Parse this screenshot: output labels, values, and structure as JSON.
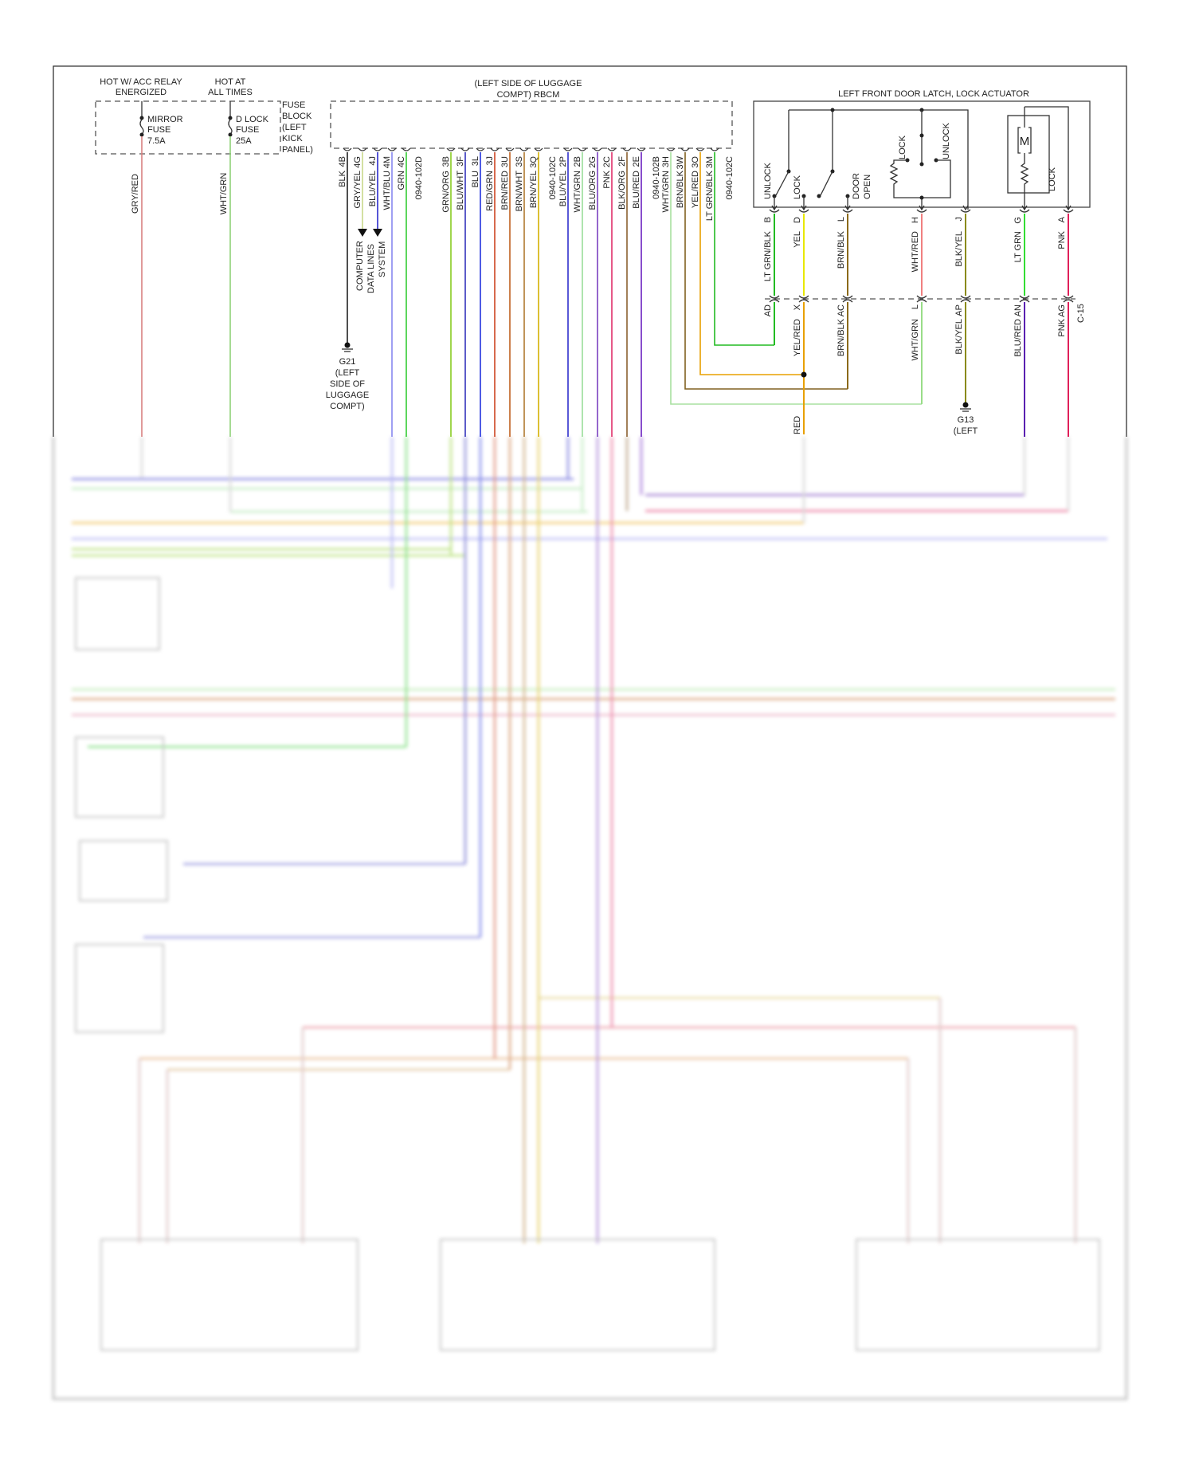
{
  "fuse_block": {
    "hot_acc": [
      "HOT W/ ACC RELAY",
      "ENERGIZED"
    ],
    "hot_all": [
      "HOT AT",
      "ALL TIMES"
    ],
    "mirror_fuse": [
      "MIRROR",
      "FUSE",
      "7.5A"
    ],
    "dlock_fuse": [
      "D LOCK",
      "FUSE",
      "25A"
    ],
    "label": [
      "FUSE",
      "BLOCK",
      "(LEFT",
      "KICK",
      "PANEL)"
    ],
    "wires": [
      {
        "wire": "GRY/RED",
        "color": "#d88080"
      },
      {
        "wire": "WHT/GRN",
        "color": "#8fd27a"
      }
    ]
  },
  "rbcm": {
    "title": [
      "(LEFT SIDE OF LUGGAGE",
      "COMPT) RBCM"
    ],
    "pins": [
      {
        "wire": "BLK",
        "pin": "4B",
        "color": "#222222"
      },
      {
        "wire": "GRY/YEL",
        "pin": "4G",
        "color": "#c8d88a"
      },
      {
        "wire": "BLU/YEL",
        "pin": "4J",
        "color": "#2a2acc"
      },
      {
        "wire": "WHT/BLU",
        "pin": "4M",
        "color": "#8888ee"
      },
      {
        "wire": "GRN",
        "pin": "4C",
        "color": "#33cc33"
      },
      {
        "connector": "0940-102D"
      },
      {
        "wire": "GRN/ORG",
        "pin": "3B",
        "color": "#88cc22"
      },
      {
        "wire": "BLU/WHT",
        "pin": "3F",
        "color": "#3333bb"
      },
      {
        "wire": "BLU",
        "pin": "3L",
        "color": "#2233dd"
      },
      {
        "wire": "RED/GRN",
        "pin": "3J",
        "color": "#cc4422"
      },
      {
        "wire": "BRN/RED",
        "pin": "3U",
        "color": "#c06020"
      },
      {
        "wire": "BRN/WHT",
        "pin": "3S",
        "color": "#b07a30"
      },
      {
        "wire": "BRN/YEL",
        "pin": "3Q",
        "color": "#d4b000"
      },
      {
        "connector": "0940-102C"
      },
      {
        "wire": "BLU/YEL",
        "pin": "2P",
        "color": "#3030cc"
      },
      {
        "wire": "WHT/GRN",
        "pin": "2B",
        "color": "#99dd99"
      },
      {
        "wire": "BLU/ORG",
        "pin": "2G",
        "color": "#7a40c0"
      },
      {
        "wire": "PNK",
        "pin": "2C",
        "color": "#e0306a"
      },
      {
        "wire": "BLK/ORG",
        "pin": "2F",
        "color": "#8a6030"
      },
      {
        "wire": "BLU/RED",
        "pin": "2E",
        "color": "#6a20c0"
      },
      {
        "connector": "0940-102B"
      },
      {
        "wire": "WHT/GRN",
        "pin": "3H",
        "color": "#a8e0a0"
      },
      {
        "wire": "BRN/BLK",
        "pin": "3W",
        "color": "#806020"
      },
      {
        "wire": "YEL/RED",
        "pin": "3O",
        "color": "#e8a000"
      },
      {
        "wire": "LT GRN/BLK",
        "pin": "3M",
        "color": "#22bb22"
      },
      {
        "connector": "0940-102C"
      }
    ]
  },
  "data_lines": [
    "COMPUTER",
    "DATA LINES",
    "SYSTEM"
  ],
  "g21": [
    "G21",
    "(LEFT",
    "SIDE OF",
    "LUGGAGE",
    "COMPT)"
  ],
  "door": {
    "title": "LEFT FRONT DOOR LATCH, LOCK ACTUATOR",
    "switch_labels": {
      "unlock": "UNLOCK",
      "lock": "LOCK",
      "door_open": [
        "DOOR",
        "OPEN"
      ],
      "res_lock": "LOCK",
      "res_unlock": "UNLOCK",
      "motor": "M",
      "motor_lock": "LOCK"
    },
    "pins": [
      {
        "wire": "LT GRN/BLK",
        "pin": "B",
        "color": "#22bb22",
        "c15_wire": "",
        "c15_pin": "AD",
        "c15_color": "#22bb22"
      },
      {
        "wire": "YEL",
        "pin": "D",
        "color": "#e8e800",
        "c15_wire": "YEL/RED",
        "c15_pin": "X",
        "c15_color": "#e8a000"
      },
      {
        "wire": "BRN/BLK",
        "pin": "L",
        "color": "#8b6a1a",
        "c15_wire": "BRN/BLK",
        "c15_pin": "AC",
        "c15_color": "#8b6a1a"
      },
      {
        "wire": "WHT/RED",
        "pin": "H",
        "color": "#f08080",
        "c15_wire": "WHT/GRN",
        "c15_pin": "L",
        "c15_color": "#99dd88"
      },
      {
        "wire": "BLK/YEL",
        "pin": "J",
        "color": "#8a8a10",
        "c15_wire": "BLK/YEL",
        "c15_pin": "AP",
        "c15_color": "#8a8a10"
      },
      {
        "wire": "LT GRN",
        "pin": "G",
        "color": "#33dd33",
        "c15_wire": "BLU/RED",
        "c15_pin": "AN",
        "c15_color": "#5a20b0"
      },
      {
        "wire": "PNK",
        "pin": "A",
        "color": "#e0205a",
        "c15_wire": "PNK",
        "c15_pin": "AG",
        "c15_color": "#e0205a"
      }
    ],
    "connector": "C-15",
    "g13": [
      "G13",
      "(LEFT"
    ],
    "partial_label": "RED"
  }
}
